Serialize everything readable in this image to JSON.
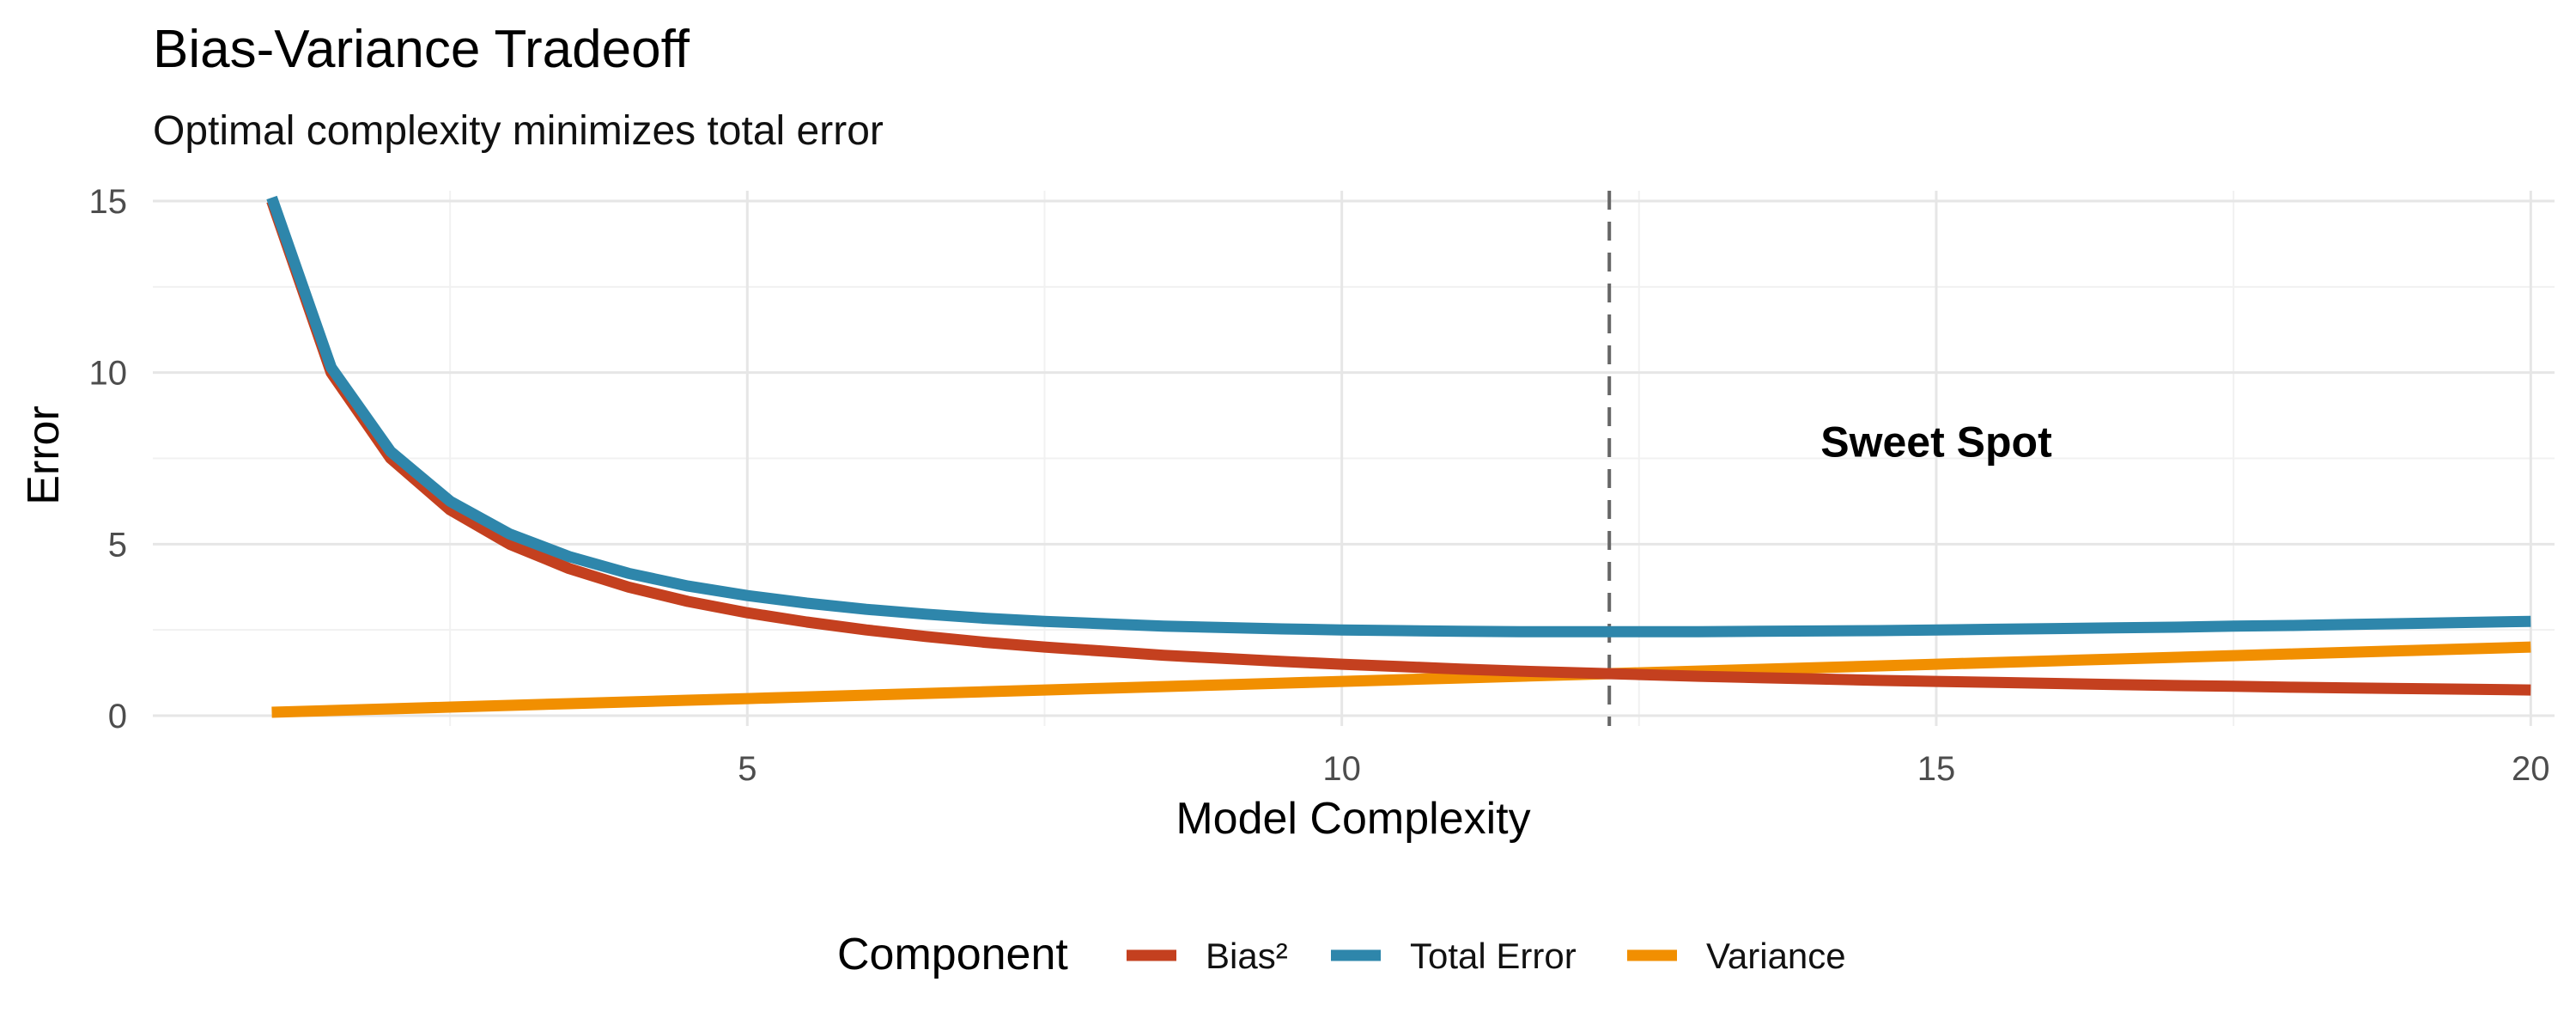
{
  "chart_data": {
    "type": "line",
    "title": "Bias-Variance Tradeoff",
    "subtitle": "Optimal complexity minimizes total error",
    "xlabel": "Model Complexity",
    "ylabel": "Error",
    "xlim": [
      0,
      20.2
    ],
    "ylim": [
      -0.3,
      15.3
    ],
    "x_ticks": [
      5,
      10,
      15,
      20
    ],
    "y_ticks": [
      0,
      5,
      10,
      15
    ],
    "grid": true,
    "x": [
      1.0,
      1.5,
      2.0,
      2.5,
      3.0,
      3.5,
      4.0,
      4.5,
      5.0,
      5.5,
      6.0,
      6.5,
      7.0,
      7.5,
      8.0,
      8.5,
      9.0,
      9.5,
      10.0,
      10.5,
      11.0,
      11.5,
      12.0,
      12.5,
      13.0,
      13.5,
      14.0,
      14.5,
      15.0,
      15.5,
      16.0,
      16.5,
      17.0,
      17.5,
      18.0,
      18.5,
      19.0,
      19.5,
      20.0
    ],
    "series": [
      {
        "name": "Bias²",
        "color": "#C4401F",
        "values": [
          15.0,
          10.0,
          7.5,
          6.0,
          5.0,
          4.29,
          3.75,
          3.33,
          3.0,
          2.73,
          2.5,
          2.31,
          2.14,
          2.0,
          1.88,
          1.76,
          1.67,
          1.58,
          1.5,
          1.43,
          1.36,
          1.3,
          1.25,
          1.2,
          1.15,
          1.11,
          1.07,
          1.03,
          1.0,
          0.97,
          0.94,
          0.91,
          0.88,
          0.86,
          0.83,
          0.81,
          0.79,
          0.77,
          0.75
        ]
      },
      {
        "name": "Total Error",
        "color": "#2E86AB",
        "values": [
          15.1,
          10.15,
          7.7,
          6.25,
          5.3,
          4.64,
          4.15,
          3.78,
          3.5,
          3.28,
          3.1,
          2.96,
          2.84,
          2.75,
          2.68,
          2.61,
          2.57,
          2.53,
          2.5,
          2.48,
          2.46,
          2.45,
          2.45,
          2.45,
          2.45,
          2.46,
          2.47,
          2.48,
          2.5,
          2.52,
          2.54,
          2.56,
          2.58,
          2.61,
          2.63,
          2.66,
          2.69,
          2.72,
          2.75
        ]
      },
      {
        "name": "Variance",
        "color": "#F18F01",
        "values": [
          0.1,
          0.15,
          0.2,
          0.25,
          0.3,
          0.35,
          0.4,
          0.45,
          0.5,
          0.55,
          0.6,
          0.65,
          0.7,
          0.75,
          0.8,
          0.85,
          0.9,
          0.95,
          1.0,
          1.05,
          1.1,
          1.15,
          1.2,
          1.25,
          1.3,
          1.35,
          1.4,
          1.45,
          1.5,
          1.55,
          1.6,
          1.65,
          1.7,
          1.75,
          1.8,
          1.85,
          1.9,
          1.95,
          2.0
        ]
      }
    ],
    "vline": {
      "x": 12.25,
      "style": "dashed",
      "color": "#666666"
    },
    "annotation": {
      "text": "Sweet Spot",
      "x": 15,
      "y": 8
    },
    "legend": {
      "title": "Component",
      "position": "bottom"
    }
  }
}
